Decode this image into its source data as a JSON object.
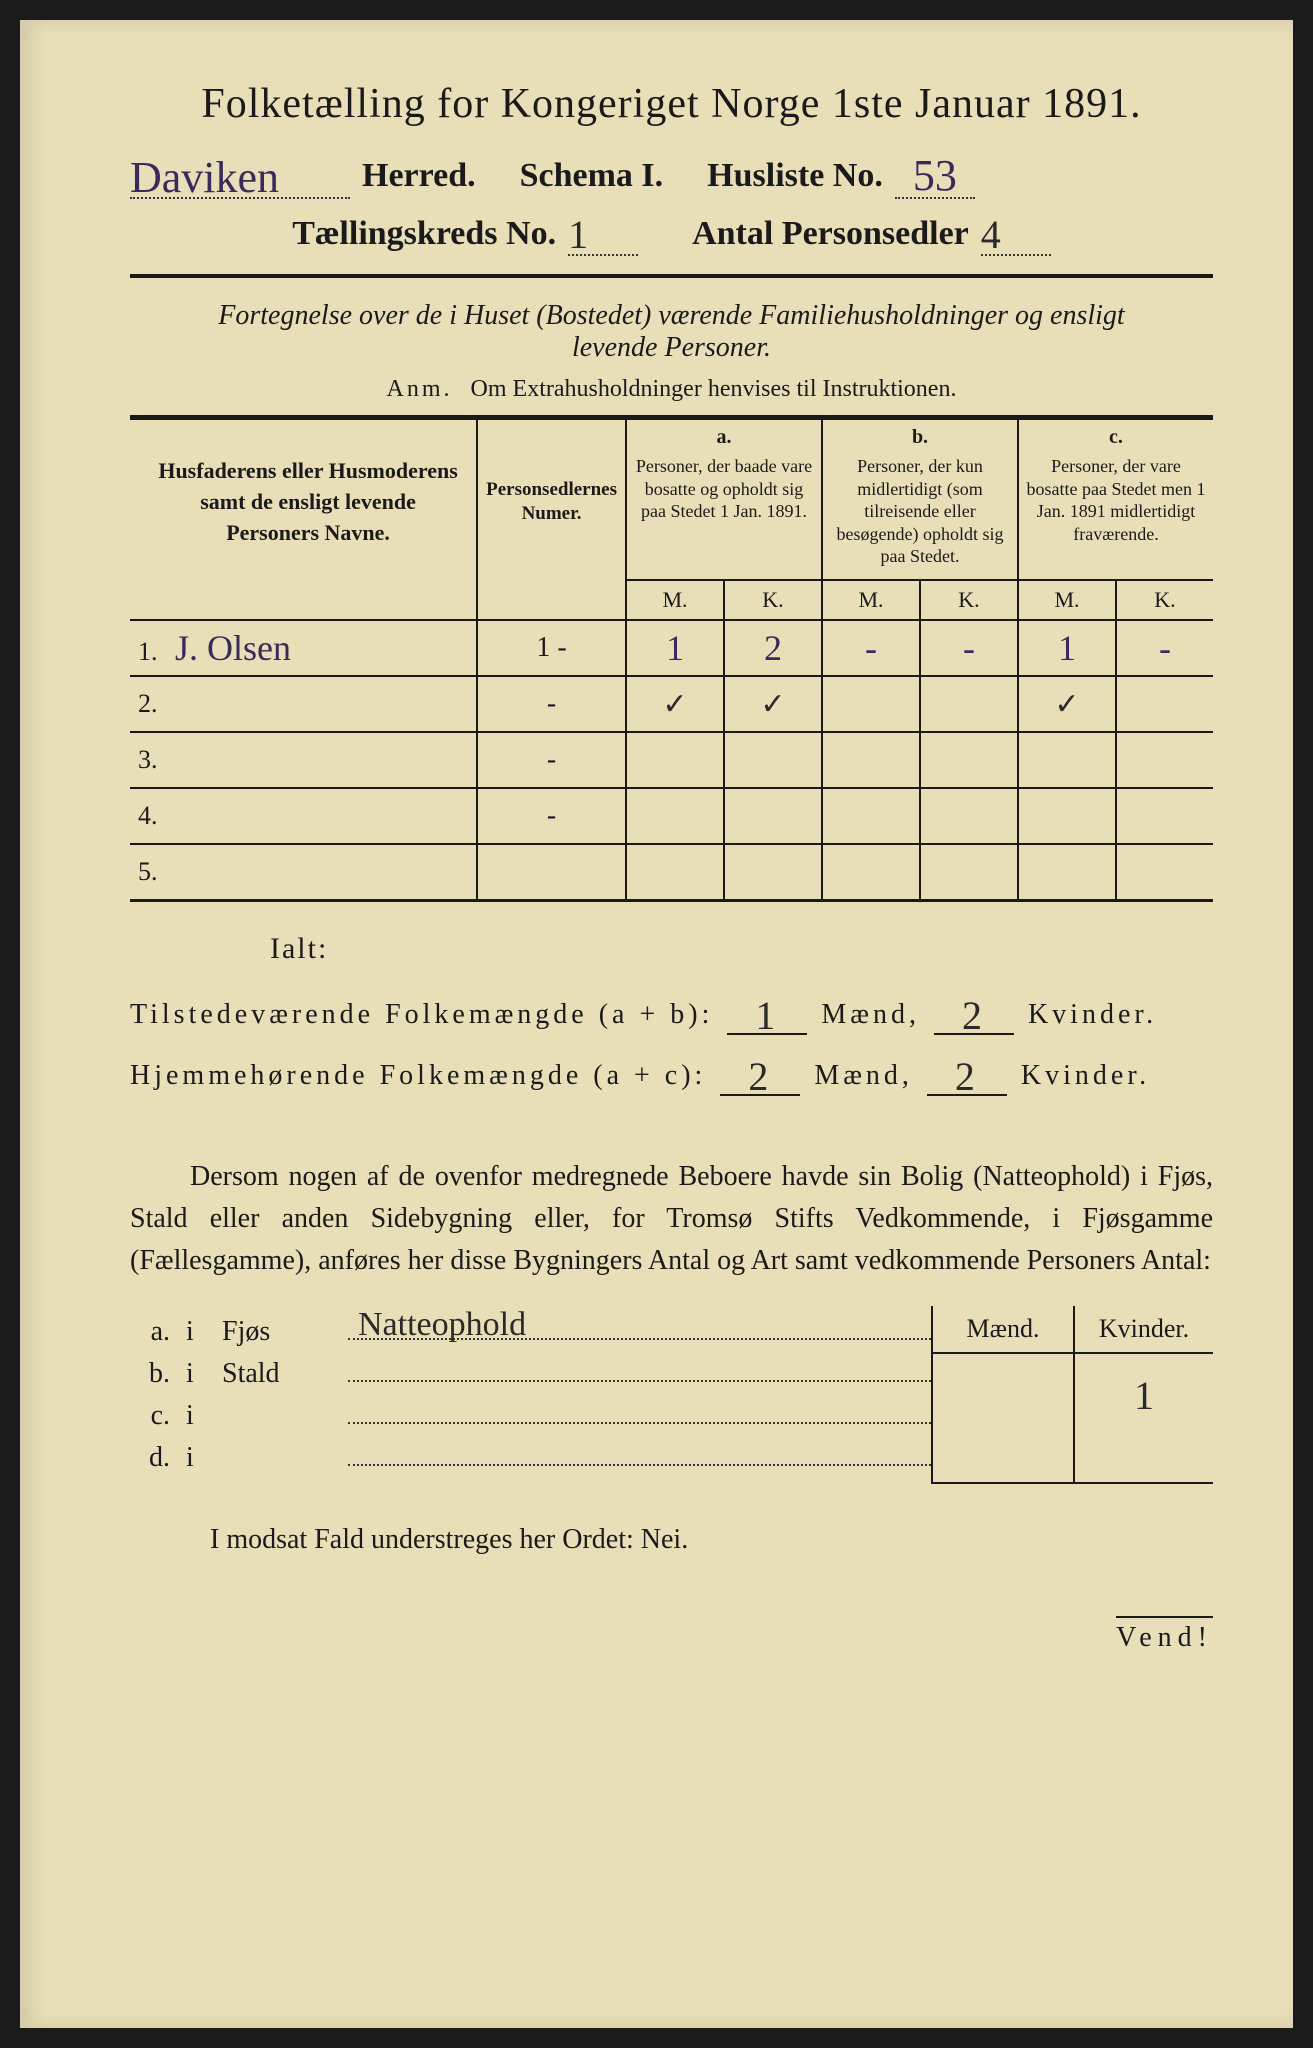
{
  "colors": {
    "paper": "#e8dfb8",
    "ink": "#1a1a1a",
    "handwriting_purple": "#3a2a5a",
    "handwriting_dark": "#2a2a2a",
    "border_outer": "#1a1a1a"
  },
  "typography": {
    "title_fontsize_pt": 32,
    "header_fontsize_pt": 26,
    "body_fontsize_pt": 21,
    "table_header_fontsize_pt": 14,
    "handwriting_fontsize_pt": 32
  },
  "title": "Folketælling for Kongeriget Norge 1ste Januar 1891.",
  "header": {
    "herred_value": "Daviken",
    "herred_label": "Herred.",
    "schema_label": "Schema I.",
    "husliste_label": "Husliste No.",
    "husliste_no": "53",
    "kreds_label": "Tællingskreds No.",
    "kreds_no": "1",
    "personsedler_label": "Antal Personsedler",
    "personsedler_no": "4"
  },
  "subtitle_line1": "Fortegnelse over de i Huset (Bostedet) værende Familiehusholdninger og ensligt",
  "subtitle_line2": "levende Personer.",
  "anm_prefix": "Anm.",
  "anm_text": "Om Extrahusholdninger henvises til Instruktionen.",
  "table": {
    "col_name_header": "Husfaderens eller Husmoderens samt de ensligt levende Personers Navne.",
    "col_num_header": "Personsedlernes Numer.",
    "col_a_letter": "a.",
    "col_a_desc": "Personer, der baade vare bosatte og opholdt sig paa Stedet 1 Jan. 1891.",
    "col_b_letter": "b.",
    "col_b_desc": "Personer, der kun midlertidigt (som tilreisende eller besøgende) opholdt sig paa Stedet.",
    "col_c_letter": "c.",
    "col_c_desc": "Personer, der vare bosatte paa Stedet men 1 Jan. 1891 midlertidigt fraværende.",
    "mk_m": "M.",
    "mk_k": "K.",
    "rows": [
      {
        "n": "1.",
        "name": "J. Olsen",
        "num": "1 -",
        "a_m": "1",
        "a_k": "2",
        "b_m": "-",
        "b_k": "-",
        "c_m": "1",
        "c_k": "-"
      },
      {
        "n": "2.",
        "name": "",
        "num": "-",
        "a_m": "✓",
        "a_k": "✓",
        "b_m": "",
        "b_k": "",
        "c_m": "✓",
        "c_k": ""
      },
      {
        "n": "3.",
        "name": "",
        "num": "-",
        "a_m": "",
        "a_k": "",
        "b_m": "",
        "b_k": "",
        "c_m": "",
        "c_k": ""
      },
      {
        "n": "4.",
        "name": "",
        "num": "-",
        "a_m": "",
        "a_k": "",
        "b_m": "",
        "b_k": "",
        "c_m": "",
        "c_k": ""
      },
      {
        "n": "5.",
        "name": "",
        "num": "",
        "a_m": "",
        "a_k": "",
        "b_m": "",
        "b_k": "",
        "c_m": "",
        "c_k": ""
      }
    ]
  },
  "ialt": {
    "label": "Ialt:",
    "line1_label": "Tilstedeværende Folkemængde (a + b):",
    "line1_m": "1",
    "line1_k": "2",
    "line2_label": "Hjemmehørende Folkemængde (a + c):",
    "line2_m": "2",
    "line2_k": "2",
    "maend": "Mænd,",
    "kvinder": "Kvinder."
  },
  "paragraph": "Dersom nogen af de ovenfor medregnede Beboere havde sin Bolig (Natteophold) i Fjøs, Stald eller anden Sidebygning eller, for Tromsø Stifts Vedkommende, i Fjøsgamme (Fællesgamme), anføres her disse Bygningers Antal og Art samt vedkommende Personers Antal:",
  "buildings": {
    "header_m": "Mænd.",
    "header_k": "Kvinder.",
    "rows": [
      {
        "lbl": "a.",
        "i": "i",
        "type": "Fjøs",
        "written": "Natteophold",
        "m": "",
        "k": "1"
      },
      {
        "lbl": "b.",
        "i": "i",
        "type": "Stald",
        "written": "",
        "m": "",
        "k": ""
      },
      {
        "lbl": "c.",
        "i": "i",
        "type": "",
        "written": "",
        "m": "",
        "k": ""
      },
      {
        "lbl": "d.",
        "i": "i",
        "type": "",
        "written": "",
        "m": "",
        "k": ""
      }
    ]
  },
  "nei_line": "I modsat Fald understreges her Ordet: Nei.",
  "vend": "Vend!"
}
